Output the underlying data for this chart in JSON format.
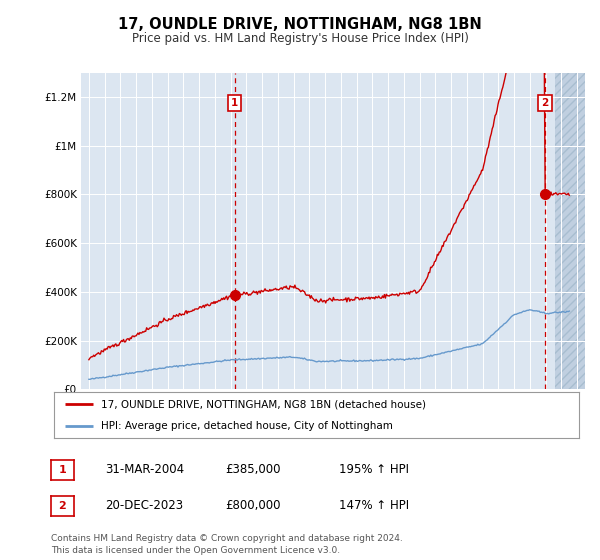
{
  "title": "17, OUNDLE DRIVE, NOTTINGHAM, NG8 1BN",
  "subtitle": "Price paid vs. HM Land Registry's House Price Index (HPI)",
  "bg_color": "#dce6f1",
  "hatch_color": "#c0cfe0",
  "red_line_color": "#cc0000",
  "blue_line_color": "#6699cc",
  "dashed_line_color": "#cc0000",
  "ylim": [
    0,
    1300000
  ],
  "yticks": [
    0,
    200000,
    400000,
    600000,
    800000,
    1000000,
    1200000
  ],
  "ytick_labels": [
    "£0",
    "£200K",
    "£400K",
    "£600K",
    "£800K",
    "£1M",
    "£1.2M"
  ],
  "marker1_x": 2004.25,
  "marker1_y": 385000,
  "marker1_label": "1",
  "marker2_x": 2023.96,
  "marker2_y": 800000,
  "marker2_label": "2",
  "footer_text": "Contains HM Land Registry data © Crown copyright and database right 2024.\nThis data is licensed under the Open Government Licence v3.0.",
  "legend_line1": "17, OUNDLE DRIVE, NOTTINGHAM, NG8 1BN (detached house)",
  "legend_line2": "HPI: Average price, detached house, City of Nottingham",
  "annotation1_num": "1",
  "annotation1_date": "31-MAR-2004",
  "annotation1_price": "£385,000",
  "annotation1_hpi": "195% ↑ HPI",
  "annotation2_num": "2",
  "annotation2_date": "20-DEC-2023",
  "annotation2_price": "£800,000",
  "annotation2_hpi": "147% ↑ HPI",
  "xmin": 1995,
  "xmax": 2026
}
